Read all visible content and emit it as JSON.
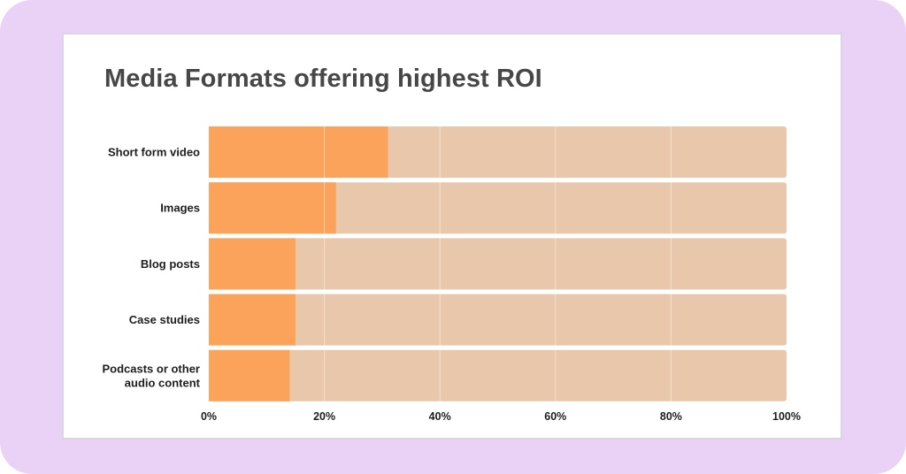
{
  "colors": {
    "frame_bg": "#ead2f6",
    "bar_fill": "#fca35b",
    "bar_remainder": "#e8c7ab",
    "gridline": "#ffffff"
  },
  "chart_data": {
    "type": "bar",
    "orientation": "horizontal",
    "stacked_to_100": true,
    "title": "Media Formats offering highest ROI",
    "categories": [
      [
        "Short form video"
      ],
      [
        "Images"
      ],
      [
        "Blog posts"
      ],
      [
        "Case studies"
      ],
      [
        "Podcasts or other",
        "audio content"
      ]
    ],
    "values": [
      31,
      22,
      15,
      15,
      14
    ],
    "xlim": [
      0,
      100
    ],
    "xticks": [
      "0%",
      "20%",
      "40%",
      "60%",
      "80%",
      "100%"
    ],
    "grid": true,
    "legend": "none"
  }
}
